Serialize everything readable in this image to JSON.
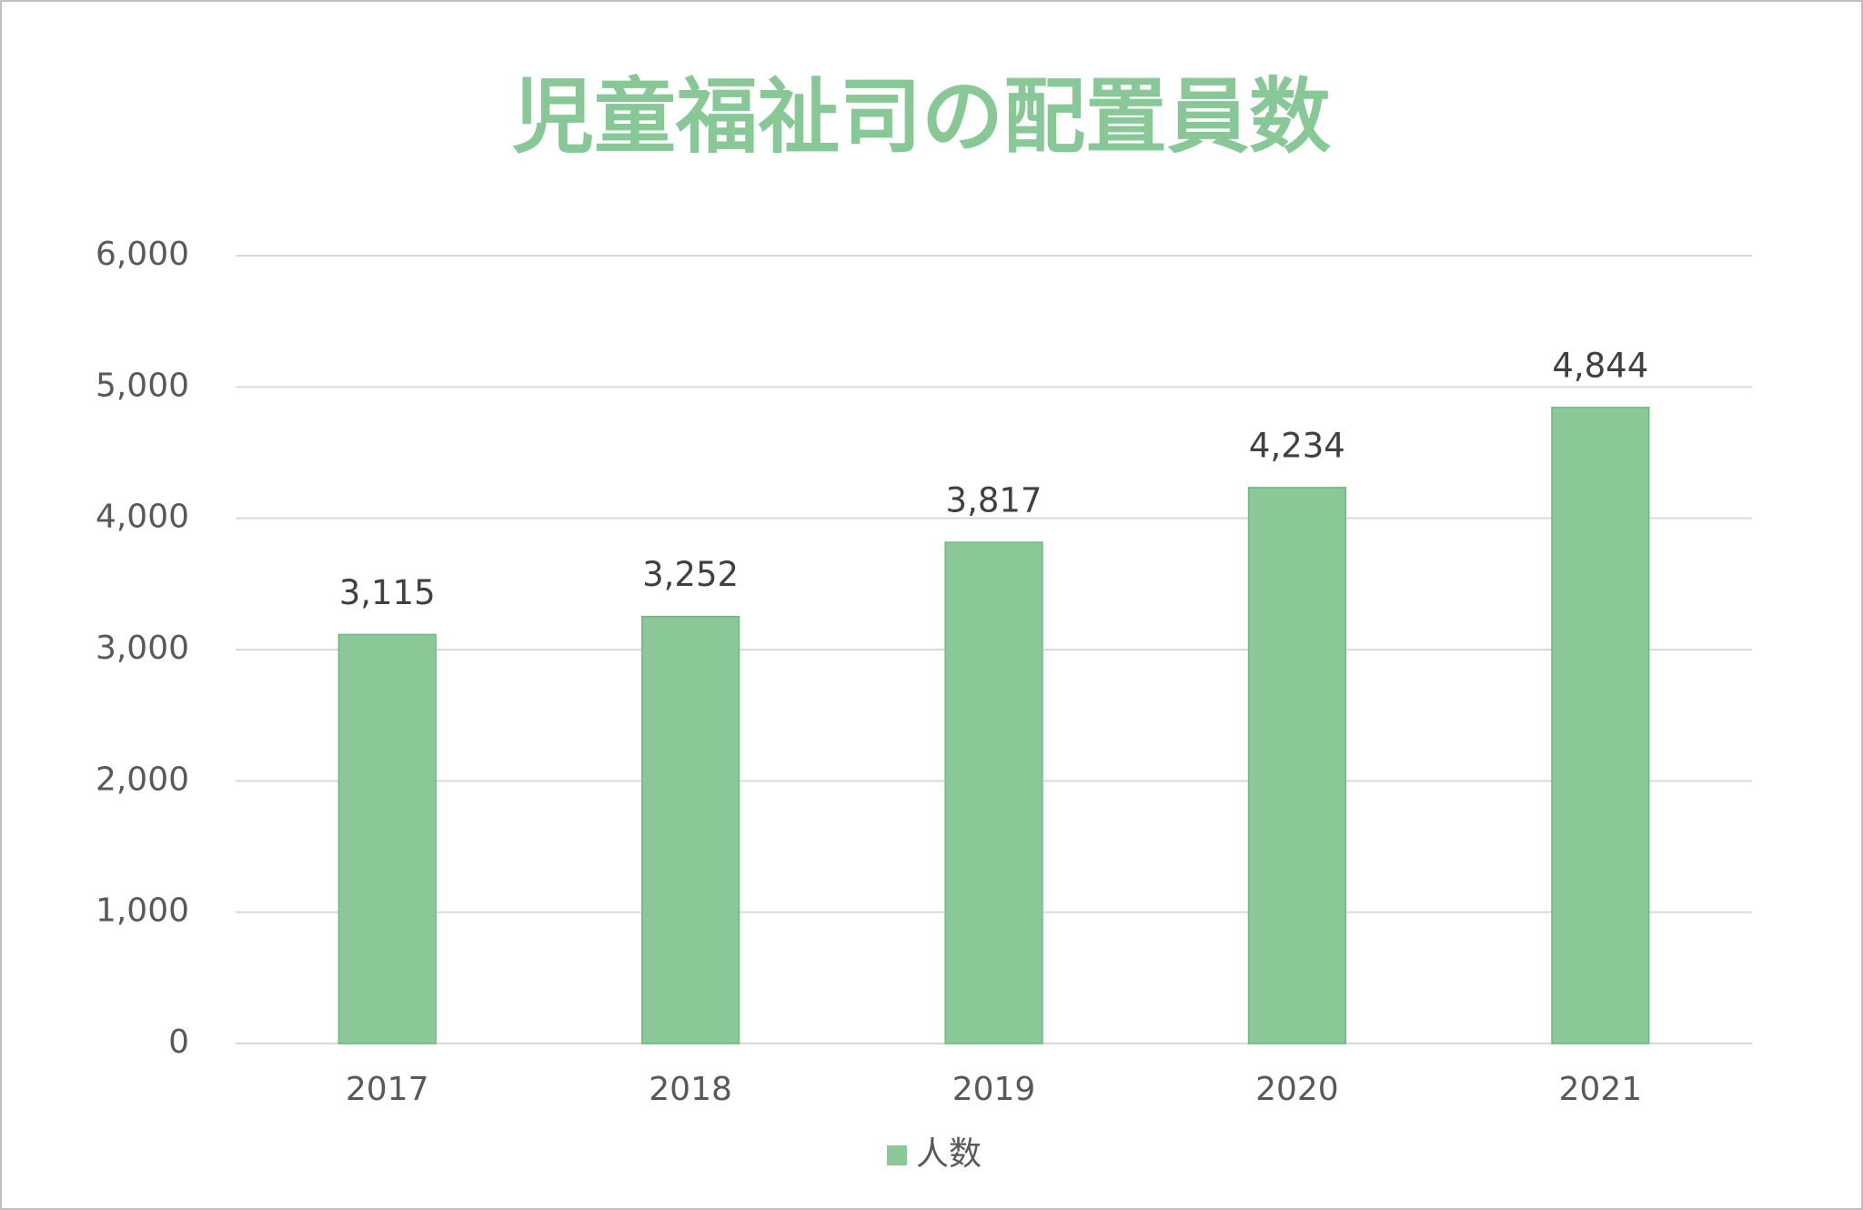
{
  "chart_data": {
    "type": "bar",
    "title": "児童福祉司の配置員数",
    "categories": [
      "2017",
      "2018",
      "2019",
      "2020",
      "2021"
    ],
    "series": [
      {
        "name": "人数",
        "color": "#8bc897",
        "values": [
          3115,
          3252,
          3817,
          4234,
          4844
        ],
        "value_labels": [
          "3,115",
          "3,252",
          "3,817",
          "4,234",
          "4,844"
        ]
      }
    ],
    "ylim": [
      0,
      6000
    ],
    "yticks": [
      0,
      {
        "value": 1000,
        "label": "1,000"
      },
      {
        "value": 2000,
        "label": "2,000"
      },
      {
        "value": 3000,
        "label": "3,000"
      },
      {
        "value": 4000,
        "label": "4,000"
      },
      {
        "value": 5000,
        "label": "5,000"
      },
      {
        "value": 6000,
        "label": "6,000"
      }
    ],
    "grid": true,
    "legend": "bottom"
  }
}
